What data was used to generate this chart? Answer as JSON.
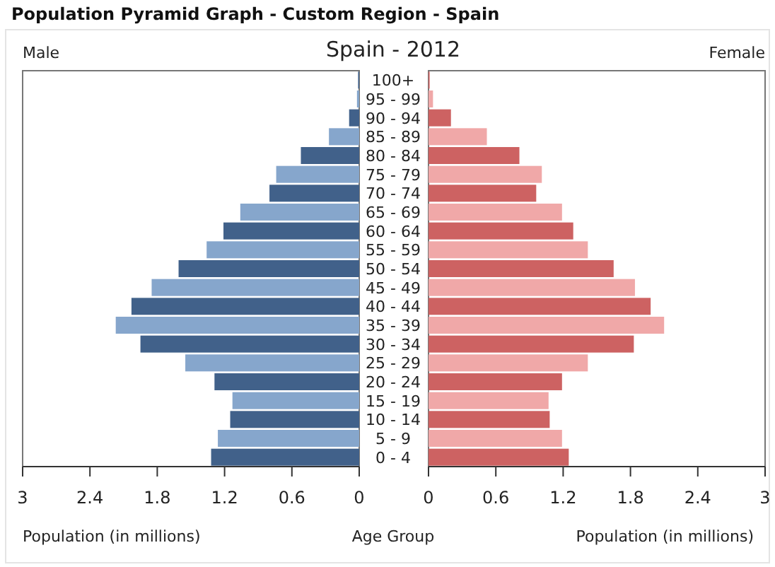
{
  "chart_data": [
    {
      "type": "bar",
      "orientation": "horizontal",
      "title": "Population Pyramid Graph - Custom Region - Spain",
      "subtitle": "Spain - 2012",
      "xlabel": "Population (in millions)",
      "ylabel": "Age Group",
      "categories": [
        "100+",
        "95 - 99",
        "90 - 94",
        "85 - 89",
        "80 - 84",
        "75 - 79",
        "70 - 74",
        "65 - 69",
        "60 - 64",
        "55 - 59",
        "50 - 54",
        "45 - 49",
        "40 - 44",
        "35 - 39",
        "30 - 34",
        "25 - 29",
        "20 - 24",
        "15 - 19",
        "10 - 14",
        "5 - 9",
        "0 - 4"
      ],
      "xlim": [
        3,
        0
      ],
      "xticks": [
        3,
        2.4,
        1.8,
        1.2,
        0.6,
        0
      ],
      "series": [
        {
          "name": "Male",
          "colors": [
            "#41618a",
            "#86a6cc",
            "#41618a",
            "#86a6cc",
            "#41618a",
            "#86a6cc",
            "#41618a",
            "#86a6cc",
            "#41618a",
            "#86a6cc",
            "#41618a",
            "#86a6cc",
            "#41618a",
            "#86a6cc",
            "#41618a",
            "#86a6cc",
            "#41618a",
            "#86a6cc",
            "#41618a",
            "#86a6cc",
            "#41618a"
          ],
          "values": [
            0.01,
            0.02,
            0.09,
            0.27,
            0.52,
            0.74,
            0.8,
            1.06,
            1.21,
            1.36,
            1.61,
            1.85,
            2.03,
            2.17,
            1.95,
            1.55,
            1.29,
            1.13,
            1.15,
            1.26,
            1.32
          ]
        }
      ]
    },
    {
      "type": "bar",
      "orientation": "horizontal",
      "xlabel": "Population (in millions)",
      "tick_labels": "x",
      "categories": [
        null,
        null,
        null,
        null,
        null,
        null,
        null,
        null,
        null,
        null,
        null,
        null,
        null,
        null,
        null,
        null,
        null,
        null,
        null,
        null,
        null
      ],
      "xlim": [
        0,
        3
      ],
      "xticks": [
        0,
        0.6,
        1.2,
        1.8,
        2.4,
        3
      ],
      "series": [
        {
          "name": "Female",
          "colors": [
            "#cd6262",
            "#f0a8a8",
            "#cd6262",
            "#f0a8a8",
            "#cd6262",
            "#f0a8a8",
            "#cd6262",
            "#f0a8a8",
            "#cd6262",
            "#f0a8a8",
            "#cd6262",
            "#f0a8a8",
            "#cd6262",
            "#f0a8a8",
            "#cd6262",
            "#f0a8a8",
            "#cd6262",
            "#f0a8a8",
            "#cd6262",
            "#f0a8a8",
            "#cd6262"
          ],
          "values": [
            0.01,
            0.04,
            0.2,
            0.52,
            0.81,
            1.01,
            0.96,
            1.19,
            1.29,
            1.42,
            1.65,
            1.84,
            1.98,
            2.1,
            1.83,
            1.42,
            1.19,
            1.07,
            1.08,
            1.19,
            1.25
          ]
        }
      ]
    }
  ]
}
